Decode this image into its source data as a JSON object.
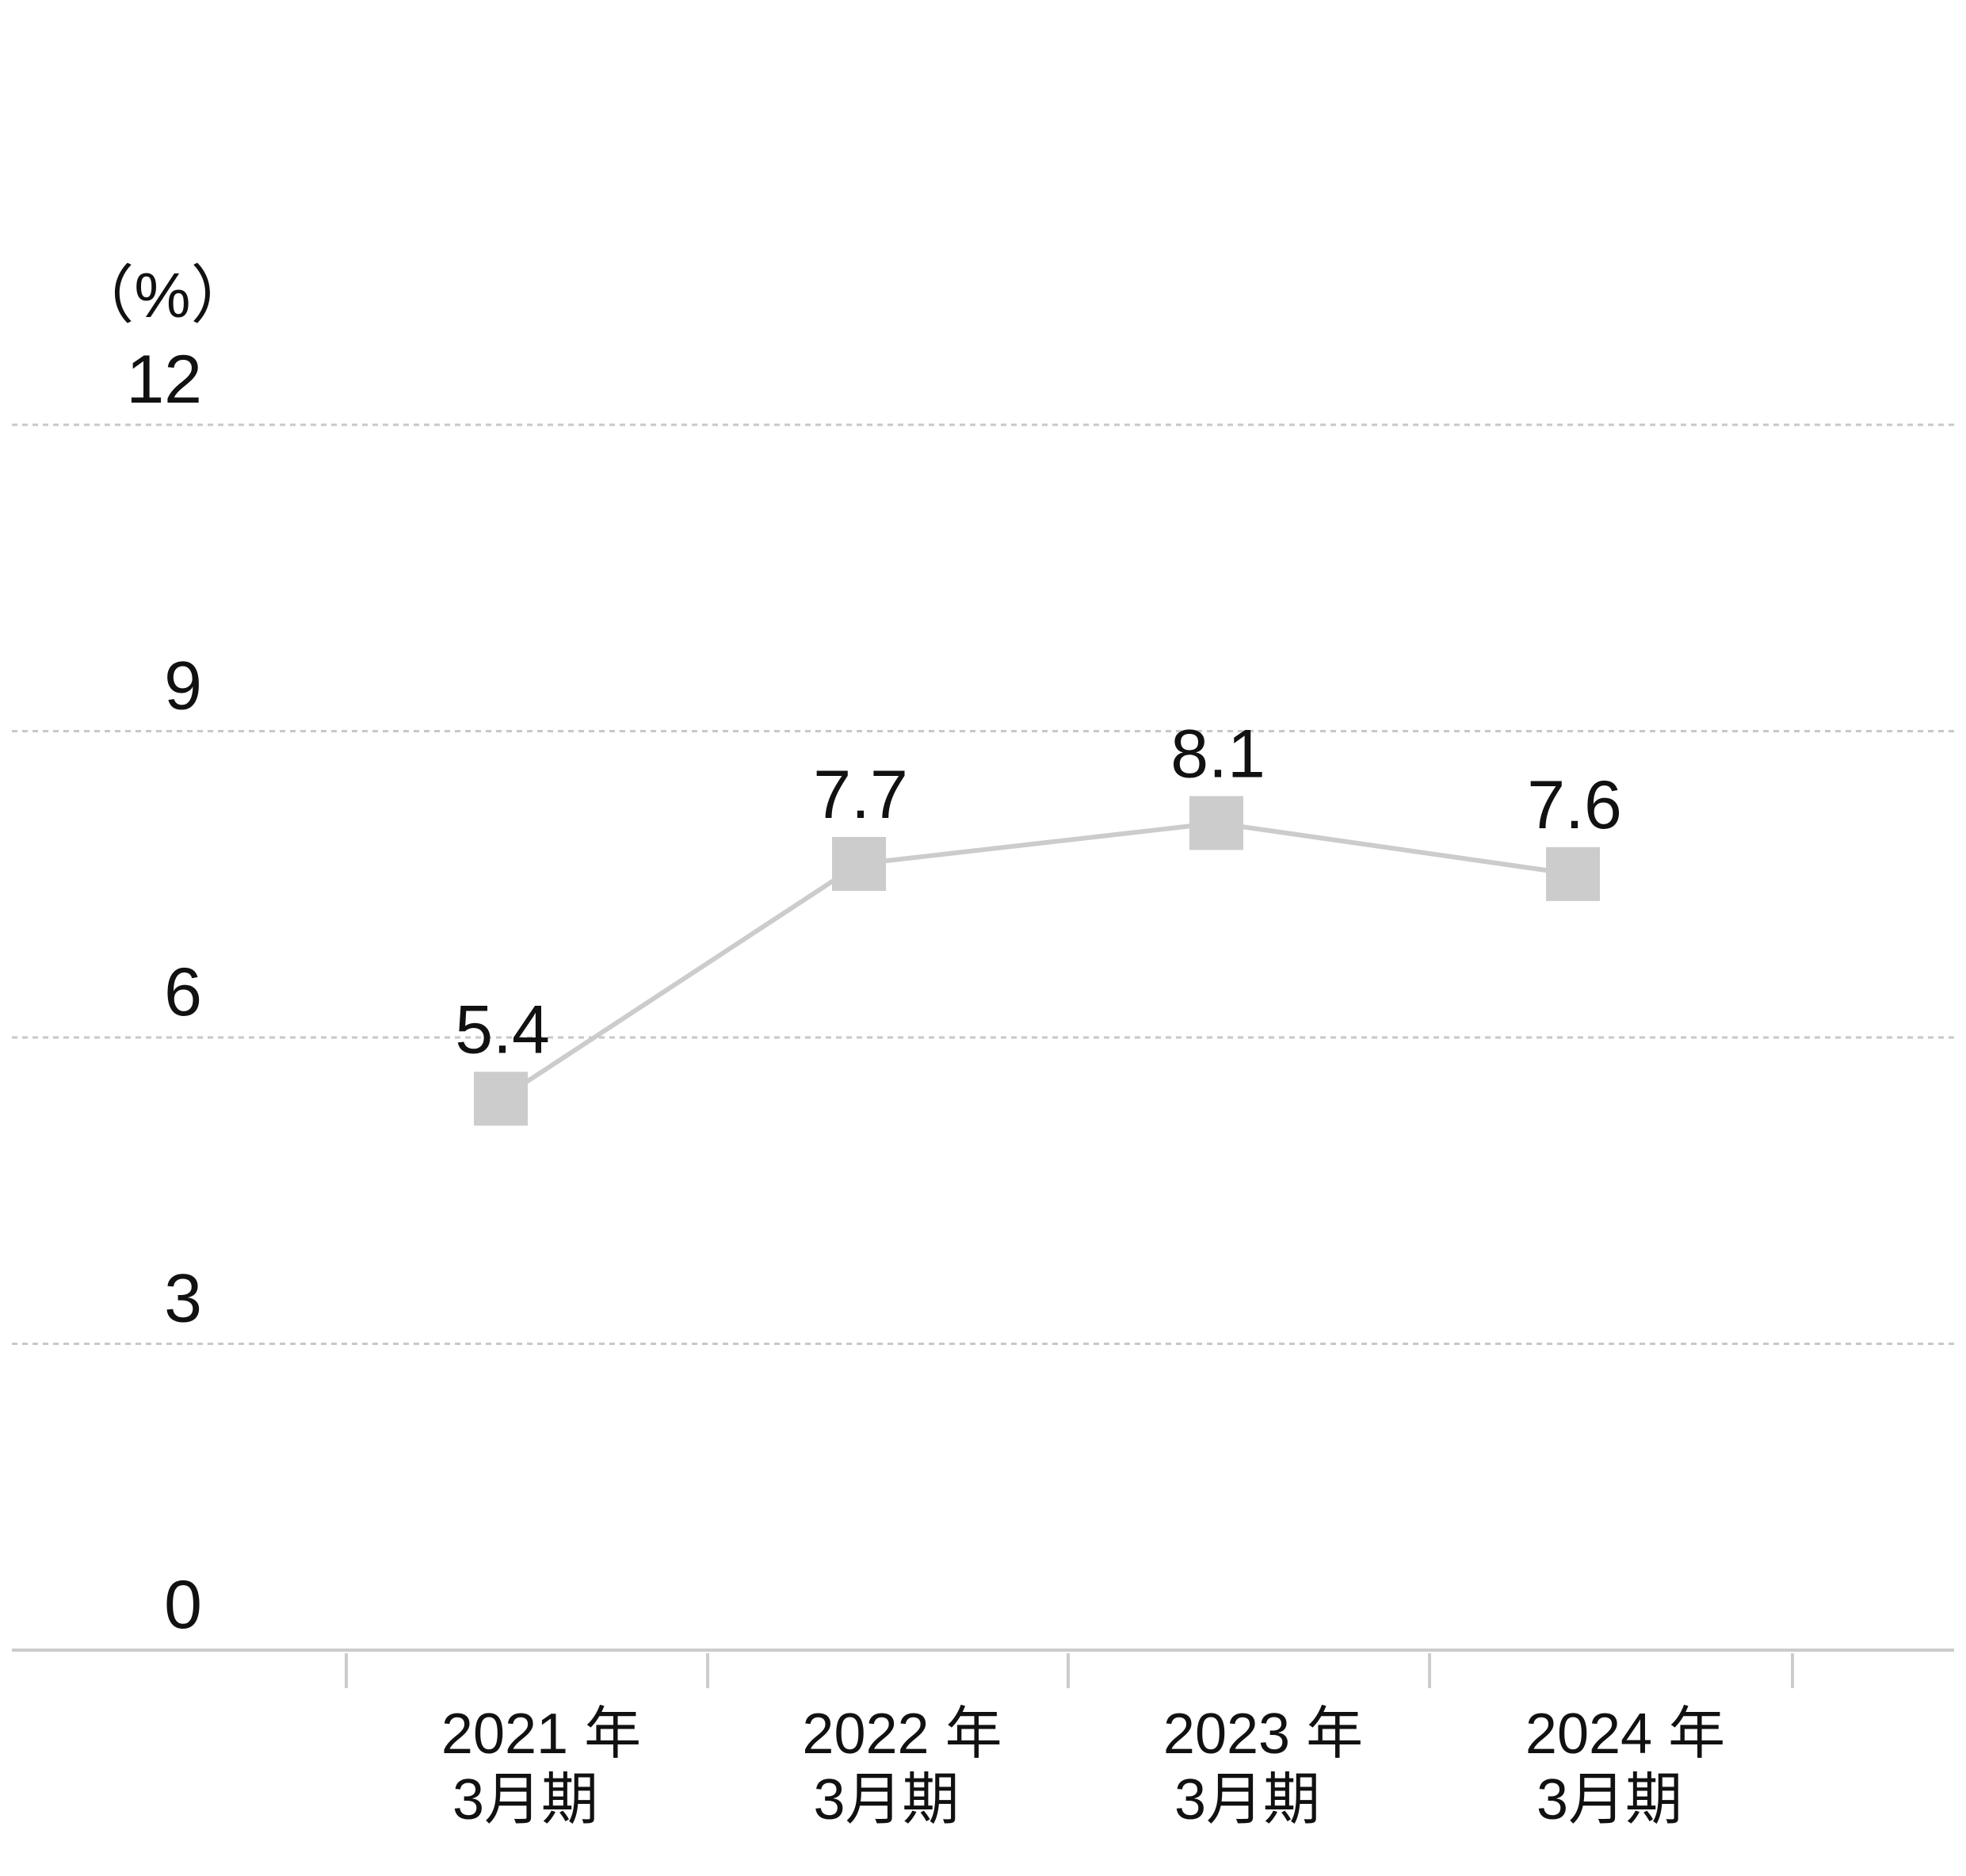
{
  "chart_data": {
    "type": "line",
    "unit_label": "（%）",
    "categories": [
      {
        "line1": "2021 年",
        "line2": "3月期"
      },
      {
        "line1": "2022 年",
        "line2": "3月期"
      },
      {
        "line1": "2023 年",
        "line2": "3月期"
      },
      {
        "line1": "2024 年",
        "line2": "3月期"
      }
    ],
    "series": [
      {
        "values": [
          5.4,
          7.7,
          8.1,
          7.6
        ],
        "labels": [
          "5.4",
          "7.7",
          "8.1",
          "7.6"
        ],
        "color": "#cccccc",
        "marker": "square"
      }
    ],
    "yticks": [
      {
        "value": 0,
        "label": "0"
      },
      {
        "value": 3,
        "label": "3"
      },
      {
        "value": 6,
        "label": "6"
      },
      {
        "value": 9,
        "label": "9"
      },
      {
        "value": 12,
        "label": "12"
      }
    ],
    "ylim": [
      0,
      12
    ],
    "grid": true,
    "grid_color": "#c8c8c8",
    "axis_color": "#cccccc",
    "text_color": "#111111"
  }
}
